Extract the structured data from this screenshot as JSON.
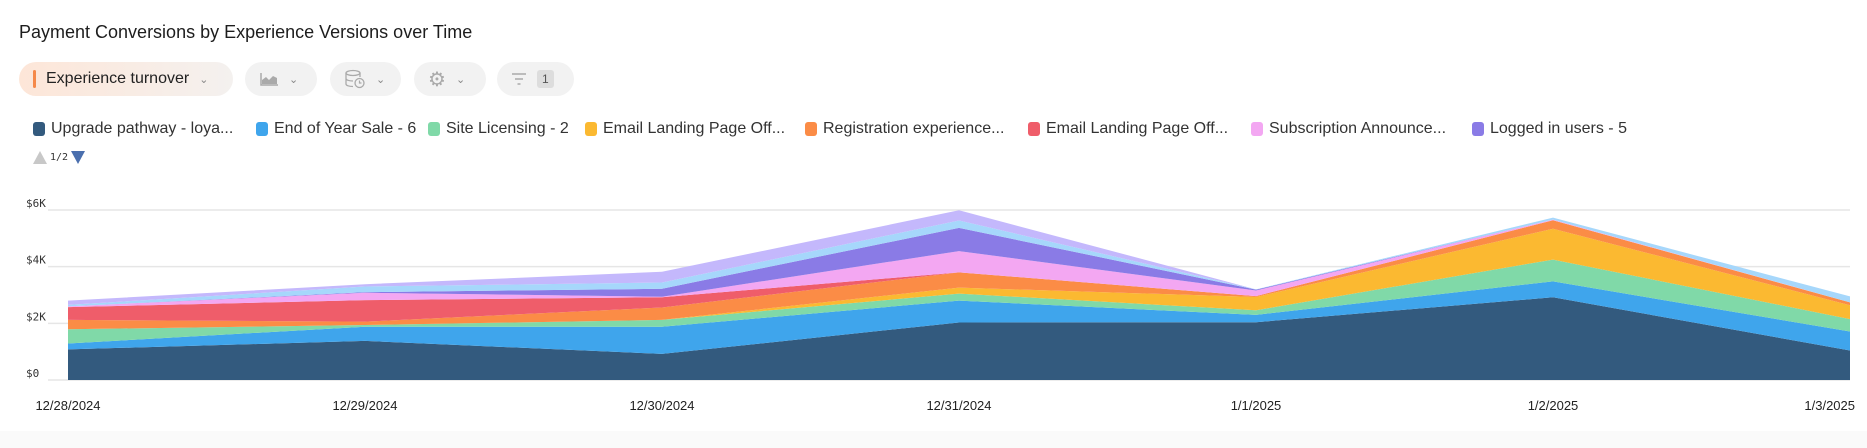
{
  "title": "Payment Conversions by Experience Versions over Time",
  "toolbar": {
    "metric_label": "Experience turnover",
    "chart_type_icon": "area-chart-icon",
    "datasource_icon": "database-clock-icon",
    "settings_icon": "gear-icon",
    "filter_icon": "filter-icon",
    "filter_count": "1"
  },
  "legend": {
    "items": [
      {
        "label": "Upgrade pathway - loya...",
        "color": "#335a7e"
      },
      {
        "label": "End of Year Sale - 6",
        "color": "#3fa5ec"
      },
      {
        "label": "Site Licensing - 2",
        "color": "#80d9a8"
      },
      {
        "label": "Email Landing Page Off...",
        "color": "#fbb931"
      },
      {
        "label": "Registration experience...",
        "color": "#fb8c46"
      },
      {
        "label": "Email Landing Page Off...",
        "color": "#ef5d6a"
      },
      {
        "label": "Subscription Announce...",
        "color": "#f3a7f2"
      },
      {
        "label": "Logged in users - 5",
        "color": "#8a7be6"
      }
    ],
    "page": "1/2"
  },
  "chart_data": {
    "type": "area",
    "stacked": true,
    "title": "Payment Conversions by Experience Versions over Time",
    "xlabel": "",
    "ylabel": "",
    "x": [
      "12/28/2024",
      "12/29/2024",
      "12/30/2024",
      "12/31/2024",
      "1/1/2025",
      "1/2/2025",
      "1/3/2025"
    ],
    "ylim": [
      0,
      6000
    ],
    "yticks": [
      {
        "v": 0,
        "label": "$0"
      },
      {
        "v": 2000,
        "label": "$2K"
      },
      {
        "v": 4000,
        "label": "$4K"
      },
      {
        "v": 6000,
        "label": "$6K"
      }
    ],
    "grid": true,
    "legend_position": "top",
    "series": [
      {
        "name": "Upgrade pathway - loya...",
        "color": "#335a7e",
        "values": [
          1080,
          1380,
          920,
          2030,
          2040,
          2920,
          1040
        ]
      },
      {
        "name": "End of Year Sale - 6",
        "color": "#3fa5ec",
        "values": [
          210,
          500,
          960,
          770,
          260,
          560,
          670
        ]
      },
      {
        "name": "Site Licensing - 2",
        "color": "#80d9a8",
        "values": [
          500,
          60,
          240,
          250,
          160,
          770,
          440
        ]
      },
      {
        "name": "Email Landing Page Off...",
        "color": "#fbb931",
        "values": [
          0,
          0,
          0,
          210,
          470,
          1090,
          490
        ]
      },
      {
        "name": "Registration experience...",
        "color": "#fb8c46",
        "values": [
          330,
          120,
          440,
          540,
          30,
          300,
          100
        ]
      },
      {
        "name": "Email Landing Page Off...",
        "color": "#ef5d6a",
        "values": [
          450,
          760,
          360,
          0,
          0,
          0,
          0
        ]
      },
      {
        "name": "Subscription Announce...",
        "color": "#f3a7f2",
        "values": [
          30,
          260,
          20,
          750,
          200,
          20,
          0
        ]
      },
      {
        "name": "Logged in users - 5",
        "color": "#8a7be6",
        "values": [
          0,
          20,
          280,
          820,
          30,
          0,
          0
        ]
      },
      {
        "color": "#a6d7fb",
        "values": [
          50,
          200,
          220,
          260,
          10,
          70,
          210
        ]
      },
      {
        "color": "#c4b8fc",
        "values": [
          150,
          80,
          380,
          360,
          0,
          0,
          0
        ]
      }
    ]
  }
}
